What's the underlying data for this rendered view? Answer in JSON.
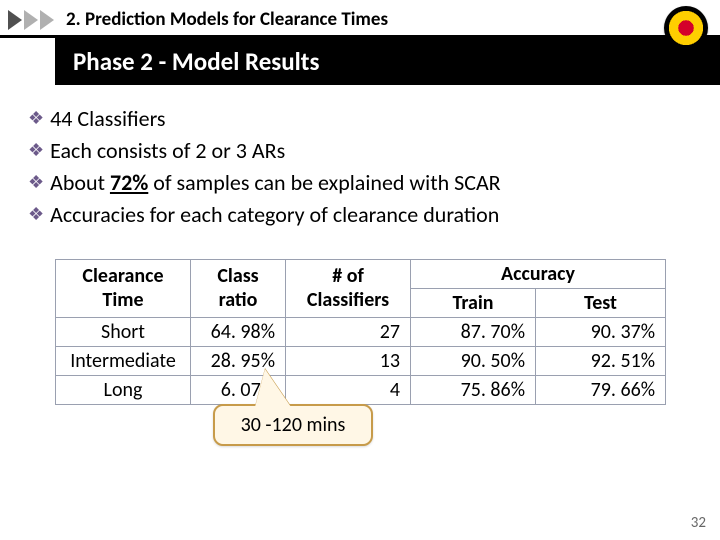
{
  "section": {
    "label": "2. Prediction Models for Clearance Times"
  },
  "phase": {
    "title": "Phase 2 - Model Results"
  },
  "bullets": {
    "b1": "44 Classifiers",
    "b2": "Each consists of 2 or 3 ARs",
    "b3_pre": "About ",
    "b3_bold": "72%",
    "b3_post": " of samples can be explained with SCAR",
    "b4": "Accuracies for each category of clearance duration"
  },
  "table": {
    "h_clearance": "Clearance Time",
    "h_ratio": "Class ratio",
    "h_classifiers": "# of Classifiers",
    "h_accuracy": "Accuracy",
    "h_train": "Train",
    "h_test": "Test",
    "rows": [
      {
        "ct": "Short",
        "ratio": "64. 98%",
        "nc": "27",
        "train": "87. 70%",
        "test": "90. 37%"
      },
      {
        "ct": "Intermediate",
        "ratio": "28. 95%",
        "nc": "13",
        "train": "90. 50%",
        "test": "92. 51%"
      },
      {
        "ct": "Long",
        "ratio": "6. 07%",
        "nc": "4",
        "train": "75. 86%",
        "test": "79. 66%"
      }
    ]
  },
  "callout": {
    "text": "30 -120 mins"
  },
  "page": {
    "num": "32"
  }
}
